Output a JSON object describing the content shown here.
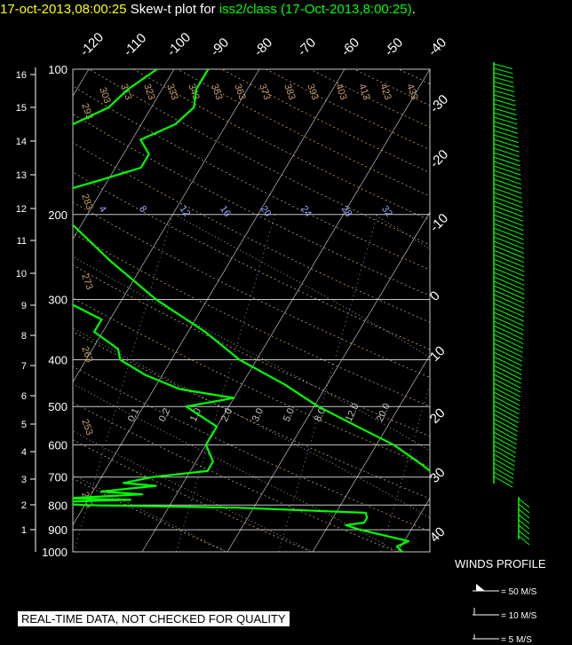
{
  "title": {
    "timestamp": "17-oct-2013,08:00:25",
    "prefix": "Skew-t plot for",
    "station_and_time": "iss2/class (17-Oct-2013,8:00:25)",
    "suffix": "."
  },
  "disclaimer": "REAL-TIME DATA, NOT CHECKED FOR QUALITY",
  "colors": {
    "background": "#000000",
    "timestamp_title": "#ffff00",
    "title_text": "#ffffff",
    "station_title": "#00ff00",
    "temperature_trace": "#00ff00",
    "dewpoint_trace": "#00ff00",
    "wind_barbs": "#00ff00",
    "grid": "#c8c8c8",
    "isotherms": "#ffffff",
    "dry_adiabats": "#c8a070",
    "mixing_ratio": "#9aa8ff",
    "moist_adiabats": "#c8c8c8"
  },
  "chart_data": {
    "type": "skew-t",
    "pressure_axis": {
      "unit": "hPa",
      "log_scale": true,
      "range": [
        1000,
        100
      ],
      "ticks": [
        "100",
        "200",
        "300",
        "400",
        "500",
        "600",
        "700",
        "800",
        "900",
        "1000"
      ]
    },
    "height_axis": {
      "unit": "km",
      "ticks": [
        "1",
        "2",
        "3",
        "4",
        "5",
        "6",
        "7",
        "8",
        "9",
        "10",
        "11",
        "12",
        "13",
        "14",
        "15",
        "16"
      ]
    },
    "temperature_ticks_top": [
      "-120",
      "-110",
      "-100",
      "-90",
      "-80",
      "-70",
      "-60",
      "-50",
      "-40"
    ],
    "temperature_ticks_right": [
      "-30",
      "-20",
      "-10",
      "0",
      "10",
      "20",
      "30",
      "40"
    ],
    "dry_adiabat_labels": [
      "243",
      "253",
      "263",
      "273",
      "283",
      "293",
      "303",
      "313",
      "323",
      "333",
      "343",
      "353",
      "363",
      "373",
      "383",
      "393",
      "403",
      "413",
      "423",
      "433"
    ],
    "mixing_ratio_labels": [
      "4",
      "8",
      "12",
      "16",
      "20",
      "24",
      "28",
      "32"
    ],
    "moist_adiabat_labels": [
      "0.1",
      "0.2",
      "1.0",
      "2.0",
      "3.0",
      "5.0",
      "8.0",
      "12.0",
      "20.0"
    ],
    "temperature_profile": [
      {
        "p": 1000,
        "t": -5.5
      },
      {
        "p": 970,
        "t": -5.5
      },
      {
        "p": 950,
        "t": -4.5
      },
      {
        "p": 900,
        "t": -4.5
      },
      {
        "p": 850,
        "t": -5.5
      },
      {
        "p": 800,
        "t": -6.5
      },
      {
        "p": 750,
        "t": -8.5
      },
      {
        "p": 700,
        "t": -10.5
      },
      {
        "p": 650,
        "t": -14
      },
      {
        "p": 600,
        "t": -18
      },
      {
        "p": 550,
        "t": -23.5
      },
      {
        "p": 500,
        "t": -29.5
      },
      {
        "p": 450,
        "t": -35
      },
      {
        "p": 400,
        "t": -42
      },
      {
        "p": 350,
        "t": -48
      },
      {
        "p": 300,
        "t": -56
      },
      {
        "p": 250,
        "t": -64
      },
      {
        "p": 200,
        "t": -73
      },
      {
        "p": 180,
        "t": -75
      },
      {
        "p": 170,
        "t": -71
      },
      {
        "p": 160,
        "t": -67
      },
      {
        "p": 150,
        "t": -67
      },
      {
        "p": 140,
        "t": -69
      },
      {
        "p": 130,
        "t": -66
      },
      {
        "p": 120,
        "t": -65
      },
      {
        "p": 110,
        "t": -66
      },
      {
        "p": 100,
        "t": -66
      }
    ],
    "dewpoint_profile": [
      {
        "p": 1000,
        "t": -9.5
      },
      {
        "p": 975,
        "t": -10.5
      },
      {
        "p": 950,
        "t": -9.5
      },
      {
        "p": 900,
        "t": -16
      },
      {
        "p": 880,
        "t": -18
      },
      {
        "p": 870,
        "t": -16
      },
      {
        "p": 850,
        "t": -16
      },
      {
        "p": 830,
        "t": -16.5
      },
      {
        "p": 810,
        "t": -32
      },
      {
        "p": 800,
        "t": -50
      },
      {
        "p": 790,
        "t": -55
      },
      {
        "p": 780,
        "t": -45
      },
      {
        "p": 775,
        "t": -53
      },
      {
        "p": 760,
        "t": -44
      },
      {
        "p": 750,
        "t": -49
      },
      {
        "p": 730,
        "t": -43
      },
      {
        "p": 720,
        "t": -47
      },
      {
        "p": 700,
        "t": -44
      },
      {
        "p": 680,
        "t": -38
      },
      {
        "p": 650,
        "t": -38
      },
      {
        "p": 600,
        "t": -40
      },
      {
        "p": 550,
        "t": -40
      },
      {
        "p": 500,
        "t": -45
      },
      {
        "p": 480,
        "t": -40
      },
      {
        "p": 460,
        "t": -47
      },
      {
        "p": 430,
        "t": -52
      },
      {
        "p": 400,
        "t": -56
      },
      {
        "p": 380,
        "t": -57
      },
      {
        "p": 350,
        "t": -61
      },
      {
        "p": 330,
        "t": -61
      },
      {
        "p": 300,
        "t": -67
      },
      {
        "p": 270,
        "t": -68
      },
      {
        "p": 250,
        "t": -72
      },
      {
        "p": 230,
        "t": -73
      },
      {
        "p": 200,
        "t": -79
      },
      {
        "p": 180,
        "t": -81
      },
      {
        "p": 160,
        "t": -82
      },
      {
        "p": 150,
        "t": -81
      },
      {
        "p": 140,
        "t": -81
      },
      {
        "p": 130,
        "t": -78
      },
      {
        "p": 120,
        "t": -75
      },
      {
        "p": 110,
        "t": -74
      },
      {
        "p": 100,
        "t": -72
      }
    ],
    "wind_profile": {
      "title": "WINDS PROFILE",
      "legend": [
        "= 50 M/S",
        "= 10 M/S",
        "= 5 M/S"
      ]
    }
  }
}
